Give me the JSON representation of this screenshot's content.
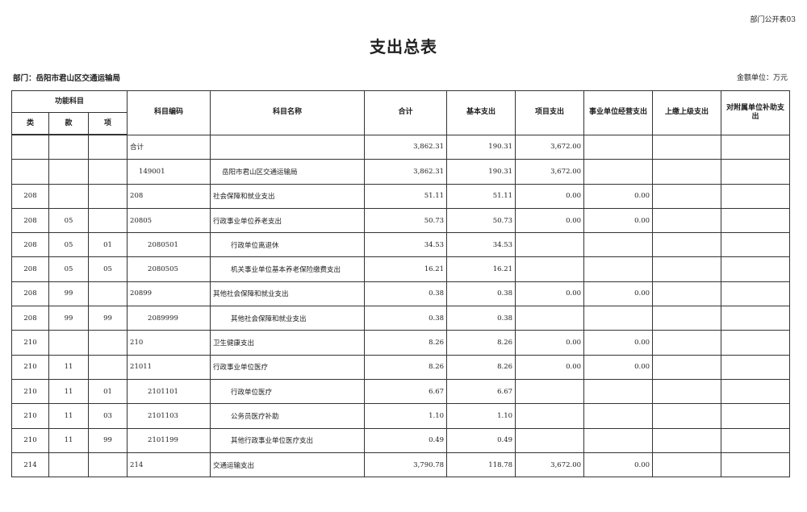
{
  "form_number": "部门公开表03",
  "title": "支出总表",
  "department": "部门：岳阳市君山区交通运输局",
  "unit": "金额单位：万元",
  "headers": {
    "group": "功能科目",
    "lei": "类",
    "kuan": "款",
    "xiang": "项",
    "code": "科目编码",
    "name": "科目名称",
    "total": "合计",
    "basic": "基本支出",
    "project": "项目支出",
    "business": "事业单位经营支出",
    "upper": "上缴上级支出",
    "subsidy": "对附属单位补助支出"
  },
  "rows": [
    {
      "lei": "",
      "kuan": "",
      "xiang": "",
      "code": "合计",
      "name": "",
      "total": "3,862.31",
      "basic": "190.31",
      "project": "3,672.00",
      "business": "",
      "upper": "",
      "subsidy": "",
      "level": 0
    },
    {
      "lei": "",
      "kuan": "",
      "xiang": "",
      "code": "149001",
      "name": "岳阳市君山区交通运输局",
      "total": "3,862.31",
      "basic": "190.31",
      "project": "3,672.00",
      "business": "",
      "upper": "",
      "subsidy": "",
      "level": 1
    },
    {
      "lei": "208",
      "kuan": "",
      "xiang": "",
      "code": "208",
      "name": "社会保障和就业支出",
      "total": "51.11",
      "basic": "51.11",
      "project": "0.00",
      "business": "0.00",
      "upper": "",
      "subsidy": "",
      "level": 0
    },
    {
      "lei": "208",
      "kuan": "05",
      "xiang": "",
      "code": "20805",
      "name": "行政事业单位养老支出",
      "total": "50.73",
      "basic": "50.73",
      "project": "0.00",
      "business": "0.00",
      "upper": "",
      "subsidy": "",
      "level": 0
    },
    {
      "lei": "208",
      "kuan": "05",
      "xiang": "01",
      "code": "2080501",
      "name": "行政单位离退休",
      "total": "34.53",
      "basic": "34.53",
      "project": "",
      "business": "",
      "upper": "",
      "subsidy": "",
      "level": 2
    },
    {
      "lei": "208",
      "kuan": "05",
      "xiang": "05",
      "code": "2080505",
      "name": "机关事业单位基本养老保险缴费支出",
      "total": "16.21",
      "basic": "16.21",
      "project": "",
      "business": "",
      "upper": "",
      "subsidy": "",
      "level": 2
    },
    {
      "lei": "208",
      "kuan": "99",
      "xiang": "",
      "code": "20899",
      "name": "其他社会保障和就业支出",
      "total": "0.38",
      "basic": "0.38",
      "project": "0.00",
      "business": "0.00",
      "upper": "",
      "subsidy": "",
      "level": 0
    },
    {
      "lei": "208",
      "kuan": "99",
      "xiang": "99",
      "code": "2089999",
      "name": "其他社会保障和就业支出",
      "total": "0.38",
      "basic": "0.38",
      "project": "",
      "business": "",
      "upper": "",
      "subsidy": "",
      "level": 2
    },
    {
      "lei": "210",
      "kuan": "",
      "xiang": "",
      "code": "210",
      "name": "卫生健康支出",
      "total": "8.26",
      "basic": "8.26",
      "project": "0.00",
      "business": "0.00",
      "upper": "",
      "subsidy": "",
      "level": 0
    },
    {
      "lei": "210",
      "kuan": "11",
      "xiang": "",
      "code": "21011",
      "name": "行政事业单位医疗",
      "total": "8.26",
      "basic": "8.26",
      "project": "0.00",
      "business": "0.00",
      "upper": "",
      "subsidy": "",
      "level": 0
    },
    {
      "lei": "210",
      "kuan": "11",
      "xiang": "01",
      "code": "2101101",
      "name": "行政单位医疗",
      "total": "6.67",
      "basic": "6.67",
      "project": "",
      "business": "",
      "upper": "",
      "subsidy": "",
      "level": 2
    },
    {
      "lei": "210",
      "kuan": "11",
      "xiang": "03",
      "code": "2101103",
      "name": "公务员医疗补助",
      "total": "1.10",
      "basic": "1.10",
      "project": "",
      "business": "",
      "upper": "",
      "subsidy": "",
      "level": 2
    },
    {
      "lei": "210",
      "kuan": "11",
      "xiang": "99",
      "code": "2101199",
      "name": "其他行政事业单位医疗支出",
      "total": "0.49",
      "basic": "0.49",
      "project": "",
      "business": "",
      "upper": "",
      "subsidy": "",
      "level": 2
    },
    {
      "lei": "214",
      "kuan": "",
      "xiang": "",
      "code": "214",
      "name": "交通运输支出",
      "total": "3,790.78",
      "basic": "118.78",
      "project": "3,672.00",
      "business": "0.00",
      "upper": "",
      "subsidy": "",
      "level": 0
    }
  ]
}
